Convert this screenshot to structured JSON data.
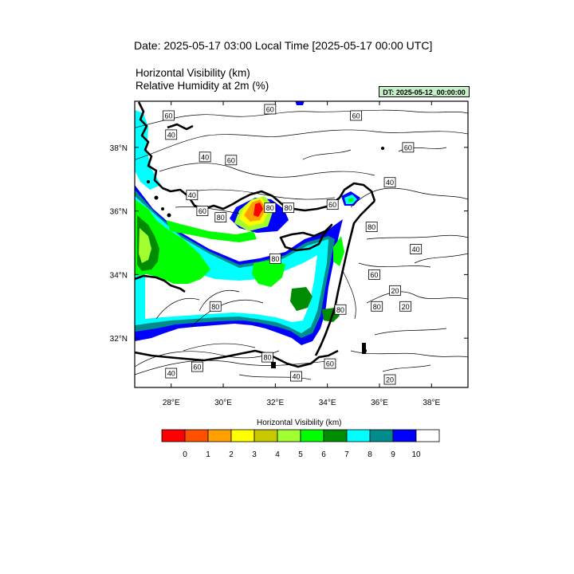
{
  "header": {
    "date_line": "Date: 2025-05-17  03:00 Local Time [2025-05-17  00:00 UTC]",
    "var_line1": "Horizontal Visibility   (km)",
    "var_line2": "Relative Humidity at 2m   (%)",
    "dt_badge": "DT: 2025-05-12_00:00:00"
  },
  "map": {
    "lon_ticks": [
      "28°E",
      "30°E",
      "32°E",
      "34°E",
      "36°E",
      "38°E"
    ],
    "lat_ticks": [
      "38°N",
      "36°N",
      "34°N",
      "32°N"
    ],
    "contour_labels": [
      {
        "t": "60",
        "lon": 27.9,
        "lat": 39.0
      },
      {
        "t": "40",
        "lon": 28.0,
        "lat": 38.4
      },
      {
        "t": "60",
        "lon": 31.8,
        "lat": 39.2
      },
      {
        "t": "60",
        "lon": 35.1,
        "lat": 39.0
      },
      {
        "t": "40",
        "lon": 29.3,
        "lat": 37.7
      },
      {
        "t": "60",
        "lon": 30.3,
        "lat": 37.6
      },
      {
        "t": "60",
        "lon": 37.1,
        "lat": 38.0
      },
      {
        "t": "40",
        "lon": 36.4,
        "lat": 36.9
      },
      {
        "t": "40",
        "lon": 28.8,
        "lat": 36.5
      },
      {
        "t": "60",
        "lon": 29.2,
        "lat": 36.0
      },
      {
        "t": "80",
        "lon": 29.9,
        "lat": 35.8
      },
      {
        "t": "80",
        "lon": 31.8,
        "lat": 36.1
      },
      {
        "t": "80",
        "lon": 32.5,
        "lat": 36.1
      },
      {
        "t": "60",
        "lon": 34.2,
        "lat": 36.2
      },
      {
        "t": "80",
        "lon": 35.7,
        "lat": 35.5
      },
      {
        "t": "40",
        "lon": 37.4,
        "lat": 34.8
      },
      {
        "t": "80",
        "lon": 32.0,
        "lat": 34.5
      },
      {
        "t": "60",
        "lon": 35.8,
        "lat": 34.0
      },
      {
        "t": "20",
        "lon": 36.6,
        "lat": 33.5
      },
      {
        "t": "80",
        "lon": 29.7,
        "lat": 33.0
      },
      {
        "t": "80",
        "lon": 34.5,
        "lat": 32.9
      },
      {
        "t": "80",
        "lon": 35.9,
        "lat": 33.0
      },
      {
        "t": "20",
        "lon": 37.0,
        "lat": 33.0
      },
      {
        "t": "80",
        "lon": 31.7,
        "lat": 31.4
      },
      {
        "t": "60",
        "lon": 29.0,
        "lat": 31.1
      },
      {
        "t": "60",
        "lon": 34.1,
        "lat": 31.2
      },
      {
        "t": "40",
        "lon": 28.0,
        "lat": 30.9
      },
      {
        "t": "40",
        "lon": 32.8,
        "lat": 30.8
      },
      {
        "t": "20",
        "lon": 36.4,
        "lat": 30.7
      }
    ]
  },
  "colorbar": {
    "title": "Horizontal Visibility  (km)",
    "colors": [
      "#ff0000",
      "#ff5000",
      "#ffa000",
      "#ffff00",
      "#c8c800",
      "#a0ff30",
      "#00ff00",
      "#008c00",
      "#00ffff",
      "#008c8c",
      "#0000ff",
      "#ffffff"
    ],
    "ticks": [
      "0",
      "1",
      "2",
      "3",
      "4",
      "5",
      "6",
      "7",
      "8",
      "9",
      "10"
    ]
  }
}
